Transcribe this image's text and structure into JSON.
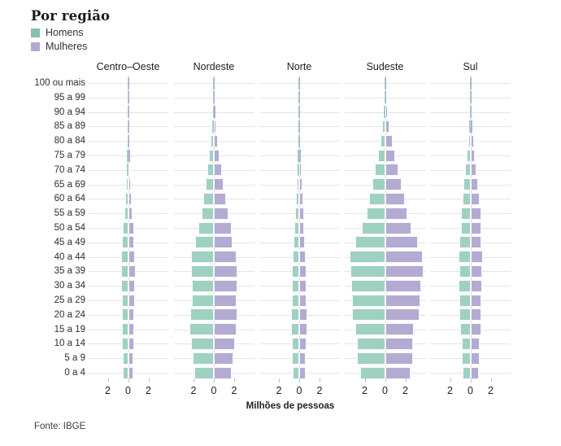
{
  "title": "Por região",
  "legend": [
    {
      "label": "Homens",
      "color": "#85c1ad"
    },
    {
      "label": "Mulheres",
      "color": "#b2abd1"
    }
  ],
  "source": "Fonte: IBGE",
  "chart_data": {
    "type": "bar",
    "subtype": "population_pyramid_small_multiples",
    "title": "Por região",
    "xlabel": "Milhões de pessoas",
    "unit": "milhões",
    "x_tick_labels": [
      "2",
      "0",
      "2"
    ],
    "x_tick_values": [
      -2,
      0,
      2
    ],
    "xlim_per_panel": [
      -3.9,
      3.9
    ],
    "grid": true,
    "legend_position": "top-left",
    "series_colors": {
      "homens": "#9ed1c1",
      "mulheres": "#b4abd3"
    },
    "age_groups": [
      "100 ou mais",
      "95 a 99",
      "90 a 94",
      "85 a 89",
      "80 a 84",
      "75 a 79",
      "70 a 74",
      "65 a 69",
      "60 a 64",
      "55 a 59",
      "50 a 54",
      "45 a 49",
      "40 a 44",
      "35 a 39",
      "30 a 34",
      "25 a 29",
      "20 a 24",
      "15 a 19",
      "10 a 14",
      "5 a 9",
      "0 a 4"
    ],
    "regions": [
      {
        "name": "Centro–Oeste",
        "homens": [
          0.01,
          0.02,
          0.03,
          0.05,
          0.08,
          0.12,
          0.16,
          0.24,
          0.32,
          0.4,
          0.52,
          0.58,
          0.67,
          0.67,
          0.65,
          0.62,
          0.61,
          0.57,
          0.59,
          0.56,
          0.53
        ],
        "mulheres": [
          0.01,
          0.02,
          0.04,
          0.08,
          0.11,
          0.16,
          0.21,
          0.29,
          0.37,
          0.45,
          0.56,
          0.6,
          0.67,
          0.72,
          0.67,
          0.64,
          0.61,
          0.56,
          0.56,
          0.53,
          0.51
        ]
      },
      {
        "name": "Nordeste",
        "homens": [
          0.01,
          0.02,
          0.08,
          0.19,
          0.29,
          0.45,
          0.61,
          0.83,
          1.01,
          1.23,
          1.52,
          1.87,
          2.21,
          2.27,
          2.13,
          2.13,
          2.32,
          2.4,
          2.21,
          2.05,
          1.95
        ],
        "mulheres": [
          0.02,
          0.03,
          0.13,
          0.24,
          0.4,
          0.56,
          0.77,
          0.99,
          1.23,
          1.44,
          1.79,
          1.87,
          2.21,
          2.32,
          2.3,
          2.2,
          2.32,
          2.27,
          2.05,
          1.95,
          1.79
        ]
      },
      {
        "name": "Norte",
        "homens": [
          0.01,
          0.02,
          0.03,
          0.06,
          0.11,
          0.13,
          0.19,
          0.27,
          0.35,
          0.43,
          0.47,
          0.53,
          0.67,
          0.72,
          0.72,
          0.72,
          0.8,
          0.8,
          0.75,
          0.75,
          0.67
        ],
        "mulheres": [
          0.01,
          0.02,
          0.03,
          0.08,
          0.11,
          0.16,
          0.21,
          0.29,
          0.37,
          0.45,
          0.5,
          0.59,
          0.67,
          0.72,
          0.72,
          0.72,
          0.8,
          0.8,
          0.72,
          0.67,
          0.67
        ]
      },
      {
        "name": "Sudeste",
        "homens": [
          0.02,
          0.05,
          0.13,
          0.29,
          0.48,
          0.69,
          0.99,
          1.28,
          1.55,
          1.81,
          2.25,
          2.9,
          3.45,
          3.42,
          3.33,
          3.25,
          3.25,
          2.93,
          2.8,
          2.8,
          2.48
        ],
        "mulheres": [
          0.05,
          0.11,
          0.24,
          0.45,
          0.72,
          0.96,
          1.28,
          1.6,
          1.92,
          2.19,
          2.6,
          3.25,
          3.73,
          3.78,
          3.55,
          3.47,
          3.41,
          2.85,
          2.72,
          2.72,
          2.48
        ]
      },
      {
        "name": "Sul",
        "homens": [
          0.01,
          0.02,
          0.04,
          0.13,
          0.21,
          0.35,
          0.51,
          0.67,
          0.8,
          0.93,
          0.95,
          1.07,
          1.15,
          1.12,
          1.15,
          1.1,
          1.1,
          1.0,
          0.88,
          0.88,
          0.8
        ],
        "mulheres": [
          0.01,
          0.03,
          0.07,
          0.19,
          0.32,
          0.45,
          0.61,
          0.77,
          0.91,
          1.04,
          1.05,
          1.07,
          1.25,
          1.15,
          1.15,
          1.1,
          1.1,
          1.05,
          0.92,
          0.88,
          0.85
        ]
      }
    ]
  }
}
